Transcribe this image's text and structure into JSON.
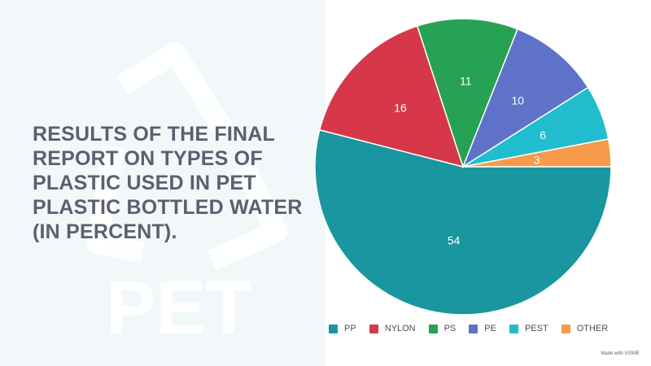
{
  "title": "RESULTS OF THE FINAL REPORT ON TYPES OF PLASTIC USED IN PET PLASTIC BOTTLED WATER (IN PERCENT).",
  "background_watermark": "PET",
  "credit": "Made with VISME",
  "colors": {
    "background": "#f2f8f9",
    "panel": "#ffffff",
    "title": "#5b5f71"
  },
  "chart_data": {
    "type": "pie",
    "title": "RESULTS OF THE FINAL REPORT ON TYPES OF PLASTIC USED IN PET PLASTIC BOTTLED WATER (IN PERCENT).",
    "categories": [
      "PP",
      "NYLON",
      "PS",
      "PE",
      "PEST",
      "OTHER"
    ],
    "values": [
      54,
      16,
      11,
      10,
      6,
      3
    ],
    "colors": [
      "#1a96a0",
      "#d63849",
      "#27a154",
      "#5e73c7",
      "#1fbdcd",
      "#f79a4b"
    ],
    "labels_shown": true,
    "legend": "bottom"
  }
}
